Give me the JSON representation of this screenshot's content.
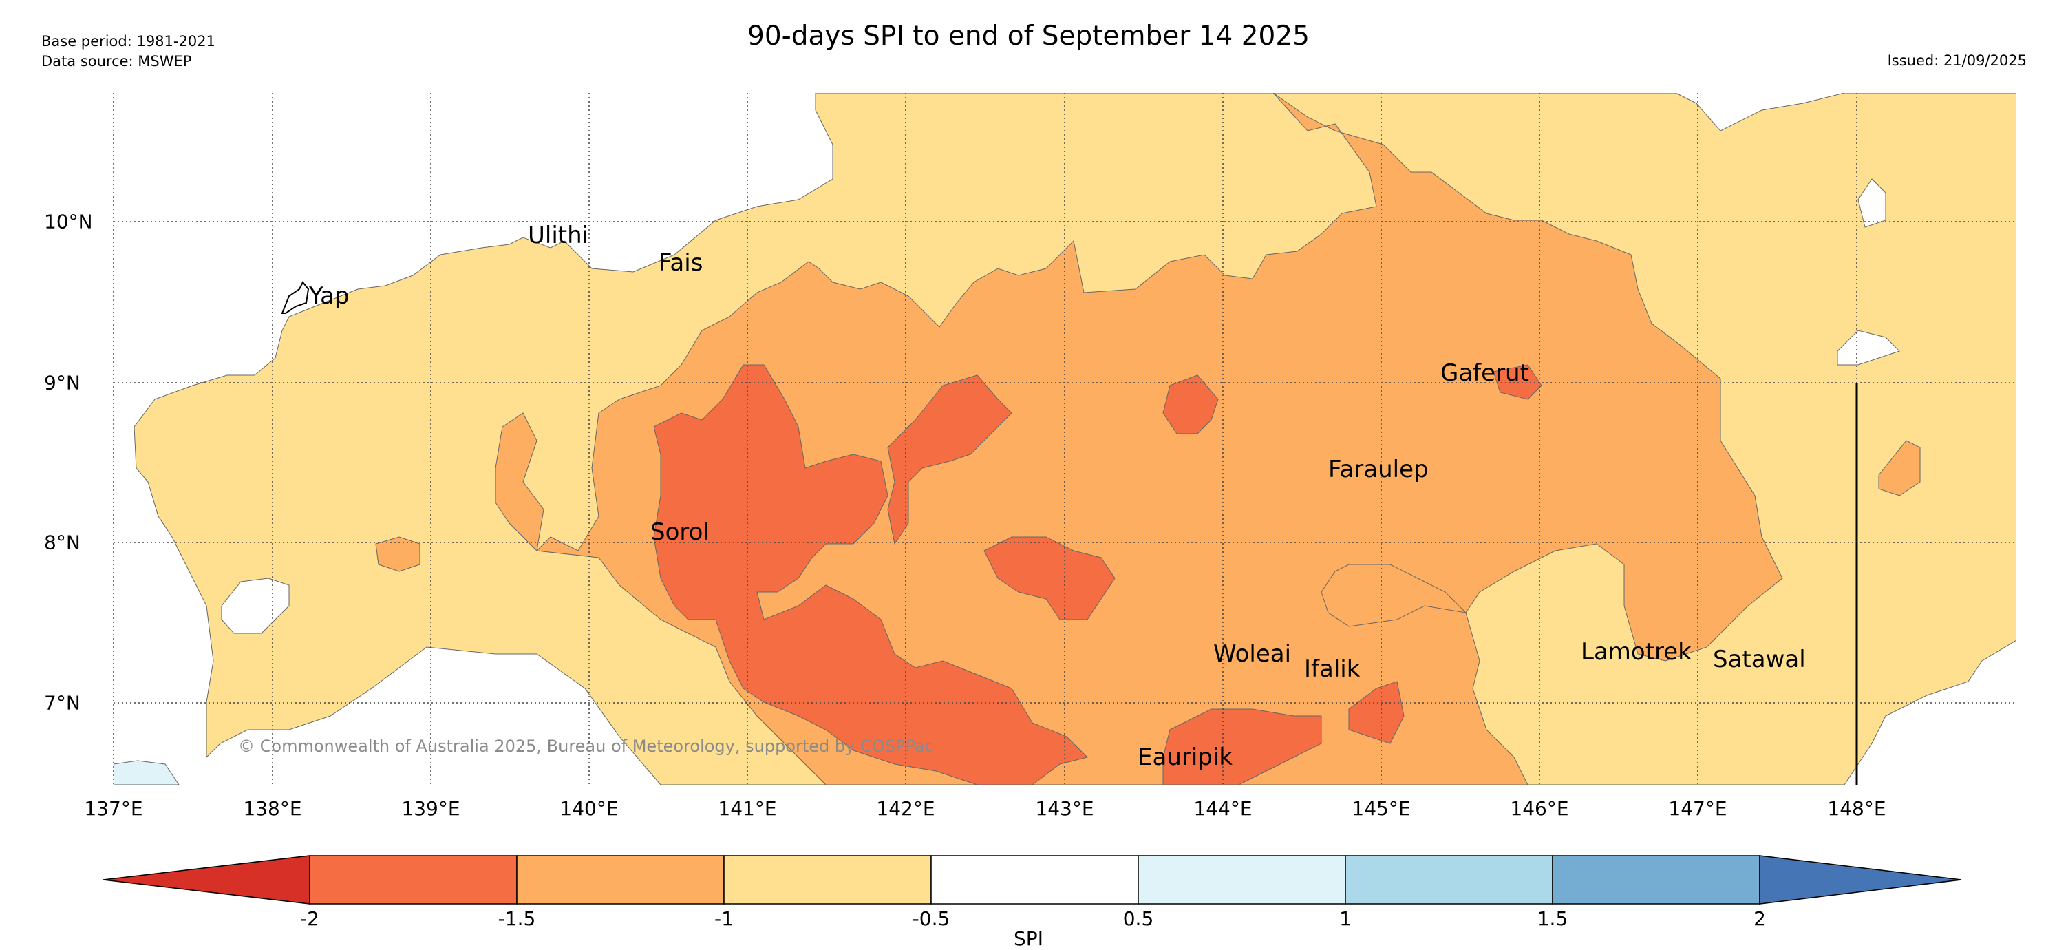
{
  "header": {
    "title": "90-days SPI to end of September 14 2025",
    "base_period": "Base period: 1981-2021",
    "data_source": "Data source: MSWEP",
    "issued": "Issued: 21/09/2025"
  },
  "map": {
    "lon_labels": [
      "137°E",
      "138°E",
      "139°E",
      "140°E",
      "141°E",
      "142°E",
      "143°E",
      "144°E",
      "145°E",
      "146°E",
      "147°E",
      "148°E"
    ],
    "lat_labels": [
      "10°N",
      "9°N",
      "8°N",
      "7°N"
    ],
    "places": [
      {
        "name": "Ulithi",
        "lon": 139.8,
        "lat": 10.0
      },
      {
        "name": "Fais",
        "lon": 140.5,
        "lat": 9.78
      },
      {
        "name": "Yap",
        "lon": 138.13,
        "lat": 9.52
      },
      {
        "name": "Gaferut",
        "lon": 145.35,
        "lat": 9.22
      },
      {
        "name": "Faraulep",
        "lon": 144.7,
        "lat": 8.6
      },
      {
        "name": "Sorol",
        "lon": 140.4,
        "lat": 8.08
      },
      {
        "name": "Woleai",
        "lon": 143.9,
        "lat": 7.35
      },
      {
        "name": "Ifalik",
        "lon": 144.45,
        "lat": 7.25
      },
      {
        "name": "Lamotrek",
        "lon": 146.25,
        "lat": 7.38
      },
      {
        "name": "Satawal",
        "lon": 147.05,
        "lat": 7.33
      },
      {
        "name": "Eauripik",
        "lon": 143.45,
        "lat": 6.7
      }
    ],
    "copyright": "© Commonwealth of Australia 2025, Bureau of Meteorology, supported by COSPPac"
  },
  "colorbar": {
    "label": "SPI",
    "ticks": [
      "-2",
      "-1.5",
      "-1",
      "-0.5",
      "0.5",
      "1",
      "1.5",
      "2"
    ],
    "colors": [
      "#d73027",
      "#f46d43",
      "#fdae61",
      "#fee090",
      "#ffffff",
      "#e0f3f8",
      "#abd9e9",
      "#74add1",
      "#4575b4"
    ]
  }
}
